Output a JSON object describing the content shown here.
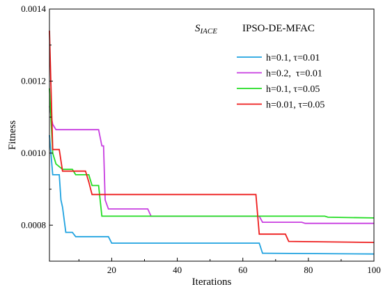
{
  "chart_data": {
    "type": "line",
    "title": "",
    "xlabel": "Iterations",
    "ylabel": "Fitness",
    "xlim": [
      1,
      100
    ],
    "ylim": [
      0.0007,
      0.0014
    ],
    "xticks": [
      20,
      40,
      60,
      80,
      100
    ],
    "yticks": [
      "0.0008",
      "0.0010",
      "0.0012",
      "0.0014"
    ],
    "annotation_symbol": {
      "main": "S",
      "sub": "IACE"
    },
    "annotation_method": "IPSO-DE-MFAC",
    "legend_position": "top-right",
    "grid": false,
    "series": [
      {
        "name": "h=0.1, τ=0.01",
        "color": "#1fa2e0",
        "points": [
          [
            1,
            0.00105
          ],
          [
            2,
            0.00094
          ],
          [
            4,
            0.00094
          ],
          [
            4.5,
            0.00087
          ],
          [
            5,
            0.00085
          ],
          [
            6,
            0.00078
          ],
          [
            8,
            0.00078
          ],
          [
            9,
            0.000768
          ],
          [
            19,
            0.000768
          ],
          [
            20,
            0.00075
          ],
          [
            65,
            0.00075
          ],
          [
            66,
            0.000722
          ],
          [
            100,
            0.00072
          ]
        ]
      },
      {
        "name": "h=0.2,  τ=0.01",
        "color": "#c83ee0",
        "points": [
          [
            1,
            0.00113
          ],
          [
            2,
            0.00108
          ],
          [
            3,
            0.001065
          ],
          [
            16,
            0.001065
          ],
          [
            17,
            0.00102
          ],
          [
            17.5,
            0.00102
          ],
          [
            18,
            0.00087
          ],
          [
            19,
            0.000845
          ],
          [
            31,
            0.000845
          ],
          [
            32,
            0.000825
          ],
          [
            65,
            0.000825
          ],
          [
            66,
            0.000808
          ],
          [
            78,
            0.000808
          ],
          [
            79,
            0.000805
          ],
          [
            100,
            0.000805
          ]
        ]
      },
      {
        "name": "h=0.1, τ=0.05",
        "color": "#22dd22",
        "points": [
          [
            1,
            0.00118
          ],
          [
            2,
            0.001
          ],
          [
            3,
            0.00097
          ],
          [
            5,
            0.000955
          ],
          [
            8,
            0.000955
          ],
          [
            9,
            0.00094
          ],
          [
            13,
            0.00094
          ],
          [
            14,
            0.00091
          ],
          [
            16,
            0.00091
          ],
          [
            17,
            0.000825
          ],
          [
            85,
            0.000825
          ],
          [
            86,
            0.000822
          ],
          [
            100,
            0.00082
          ]
        ]
      },
      {
        "name": "h=0.01, τ=0.05",
        "color": "#ee1c1c",
        "points": [
          [
            1,
            0.00134
          ],
          [
            2,
            0.00101
          ],
          [
            4,
            0.00101
          ],
          [
            5,
            0.00095
          ],
          [
            12,
            0.00095
          ],
          [
            13,
            0.00092
          ],
          [
            14,
            0.000885
          ],
          [
            64,
            0.000885
          ],
          [
            65,
            0.000775
          ],
          [
            73,
            0.000775
          ],
          [
            74,
            0.000755
          ],
          [
            100,
            0.000752
          ]
        ]
      }
    ]
  }
}
